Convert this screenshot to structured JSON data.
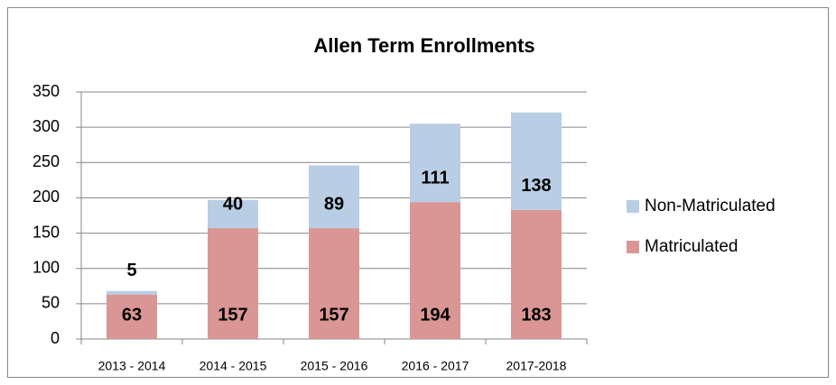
{
  "chart_data": {
    "type": "stacked_bar",
    "title": "Allen Term Enrollments",
    "categories": [
      "2013 - 2014",
      "2014 - 2015",
      "2015 - 2016",
      "2016 - 2017",
      "2017-2018"
    ],
    "series": [
      {
        "name": "Matriculated",
        "color": "#d99694",
        "values": [
          63,
          157,
          157,
          194,
          183
        ]
      },
      {
        "name": "Non-Matriculated",
        "color": "#b9cde5",
        "values": [
          5,
          40,
          89,
          111,
          138
        ]
      }
    ],
    "ylim": [
      0,
      350
    ],
    "yticks": [
      0,
      50,
      100,
      150,
      200,
      250,
      300,
      350
    ],
    "grid": true,
    "legend": "right"
  }
}
